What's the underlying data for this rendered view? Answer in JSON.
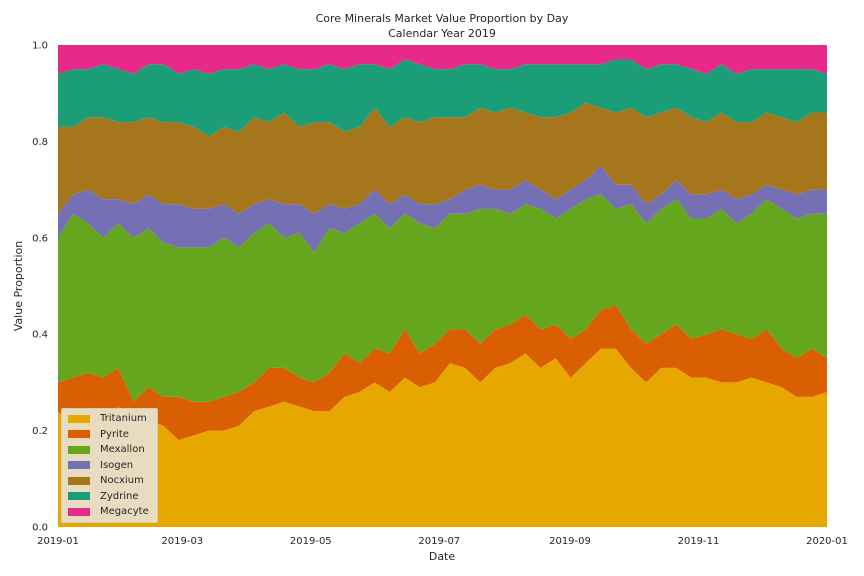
{
  "chart_data": {
    "type": "area",
    "stacked": true,
    "title": "Core Minerals Market Value Proportion by Day",
    "subtitle": "Calendar Year 2019",
    "xlabel": "Date",
    "ylabel": "Value Proportion",
    "xlim": [
      "2019-01-01",
      "2020-01-01"
    ],
    "ylim": [
      0,
      1
    ],
    "x_ticks": [
      "2019-01",
      "2019-03",
      "2019-05",
      "2019-07",
      "2019-09",
      "2019-11",
      "2020-01"
    ],
    "y_ticks": [
      "0.0",
      "0.2",
      "0.4",
      "0.6",
      "0.8",
      "1.0"
    ],
    "grid": false,
    "legend_position": "lower-left",
    "series": [
      {
        "name": "Tritanium",
        "color": "#e6a800",
        "values": [
          0.24,
          0.21,
          0.23,
          0.2,
          0.25,
          0.18,
          0.22,
          0.21,
          0.18,
          0.19,
          0.2,
          0.2,
          0.21,
          0.24,
          0.25,
          0.26,
          0.25,
          0.24,
          0.24,
          0.27,
          0.28,
          0.3,
          0.28,
          0.31,
          0.29,
          0.3,
          0.34,
          0.33,
          0.3,
          0.33,
          0.34,
          0.36,
          0.33,
          0.35,
          0.31,
          0.34,
          0.37,
          0.37,
          0.33,
          0.3,
          0.33,
          0.33,
          0.31,
          0.31,
          0.3,
          0.3,
          0.31,
          0.3,
          0.29,
          0.27,
          0.27,
          0.28
        ]
      },
      {
        "name": "Pyrite",
        "color": "#d95f02",
        "values": [
          0.06,
          0.1,
          0.09,
          0.11,
          0.08,
          0.08,
          0.07,
          0.06,
          0.09,
          0.07,
          0.06,
          0.07,
          0.07,
          0.06,
          0.08,
          0.07,
          0.06,
          0.06,
          0.08,
          0.09,
          0.06,
          0.07,
          0.08,
          0.1,
          0.07,
          0.08,
          0.07,
          0.08,
          0.08,
          0.08,
          0.08,
          0.08,
          0.08,
          0.07,
          0.08,
          0.07,
          0.08,
          0.09,
          0.08,
          0.08,
          0.07,
          0.09,
          0.08,
          0.09,
          0.11,
          0.1,
          0.08,
          0.11,
          0.08,
          0.08,
          0.1,
          0.07
        ]
      },
      {
        "name": "Mexallon",
        "color": "#66a61e",
        "values": [
          0.3,
          0.34,
          0.31,
          0.29,
          0.3,
          0.34,
          0.33,
          0.32,
          0.31,
          0.32,
          0.32,
          0.33,
          0.3,
          0.31,
          0.3,
          0.27,
          0.3,
          0.27,
          0.3,
          0.25,
          0.29,
          0.28,
          0.26,
          0.24,
          0.27,
          0.24,
          0.24,
          0.24,
          0.28,
          0.25,
          0.23,
          0.23,
          0.25,
          0.22,
          0.27,
          0.27,
          0.24,
          0.2,
          0.26,
          0.25,
          0.26,
          0.26,
          0.25,
          0.24,
          0.25,
          0.23,
          0.26,
          0.27,
          0.29,
          0.29,
          0.28,
          0.3
        ]
      },
      {
        "name": "Isogen",
        "color": "#7570b3",
        "values": [
          0.05,
          0.04,
          0.07,
          0.08,
          0.05,
          0.07,
          0.07,
          0.08,
          0.09,
          0.08,
          0.08,
          0.07,
          0.07,
          0.06,
          0.05,
          0.07,
          0.06,
          0.08,
          0.05,
          0.05,
          0.04,
          0.05,
          0.05,
          0.04,
          0.04,
          0.05,
          0.03,
          0.05,
          0.05,
          0.04,
          0.05,
          0.05,
          0.04,
          0.04,
          0.04,
          0.04,
          0.06,
          0.05,
          0.04,
          0.04,
          0.03,
          0.04,
          0.05,
          0.05,
          0.04,
          0.05,
          0.04,
          0.03,
          0.04,
          0.05,
          0.05,
          0.05
        ]
      },
      {
        "name": "Nocxium",
        "color": "#a6761d",
        "values": [
          0.18,
          0.14,
          0.15,
          0.17,
          0.16,
          0.17,
          0.16,
          0.17,
          0.17,
          0.17,
          0.15,
          0.16,
          0.17,
          0.18,
          0.16,
          0.19,
          0.16,
          0.19,
          0.17,
          0.16,
          0.16,
          0.17,
          0.16,
          0.16,
          0.17,
          0.18,
          0.17,
          0.15,
          0.16,
          0.16,
          0.17,
          0.14,
          0.15,
          0.17,
          0.16,
          0.16,
          0.12,
          0.15,
          0.16,
          0.18,
          0.17,
          0.15,
          0.16,
          0.15,
          0.16,
          0.16,
          0.15,
          0.15,
          0.15,
          0.15,
          0.16,
          0.16
        ]
      },
      {
        "name": "Zydrine",
        "color": "#1b9e77",
        "values": [
          0.11,
          0.12,
          0.1,
          0.11,
          0.11,
          0.1,
          0.11,
          0.12,
          0.1,
          0.12,
          0.13,
          0.12,
          0.13,
          0.11,
          0.11,
          0.1,
          0.12,
          0.11,
          0.12,
          0.13,
          0.13,
          0.09,
          0.12,
          0.12,
          0.12,
          0.1,
          0.1,
          0.11,
          0.09,
          0.09,
          0.08,
          0.1,
          0.11,
          0.11,
          0.1,
          0.08,
          0.09,
          0.11,
          0.1,
          0.1,
          0.1,
          0.09,
          0.1,
          0.1,
          0.1,
          0.1,
          0.11,
          0.09,
          0.1,
          0.11,
          0.09,
          0.08
        ]
      },
      {
        "name": "Megacyte",
        "color": "#e7298a",
        "values": [
          0.06,
          0.05,
          0.05,
          0.04,
          0.05,
          0.06,
          0.04,
          0.04,
          0.06,
          0.05,
          0.06,
          0.05,
          0.05,
          0.04,
          0.05,
          0.04,
          0.05,
          0.05,
          0.04,
          0.05,
          0.04,
          0.04,
          0.05,
          0.03,
          0.04,
          0.05,
          0.05,
          0.04,
          0.04,
          0.05,
          0.05,
          0.04,
          0.04,
          0.04,
          0.04,
          0.04,
          0.04,
          0.03,
          0.03,
          0.05,
          0.04,
          0.04,
          0.05,
          0.06,
          0.04,
          0.06,
          0.05,
          0.05,
          0.05,
          0.05,
          0.05,
          0.06
        ]
      }
    ]
  }
}
